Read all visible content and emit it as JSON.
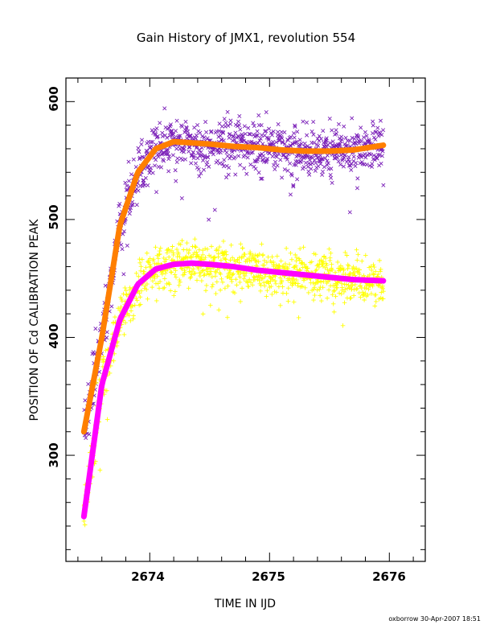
{
  "chart_data": {
    "type": "scatter",
    "title": "Gain History of JMX1, revolution 554",
    "xlabel": "TIME IN IJD",
    "ylabel": "POSITION OF Cd CALIBRATION PEAK",
    "footer": "oxborrow 30-Apr-2007 18:51",
    "xlim": [
      2673.3,
      2676.3
    ],
    "ylim": [
      210,
      620
    ],
    "x_ticks": [
      2674,
      2675,
      2676
    ],
    "y_ticks": [
      300,
      400,
      500,
      600
    ],
    "grid": false,
    "legend": "none",
    "series": [
      {
        "marker": "x",
        "color": "#7a1fb8",
        "x_range": [
          2673.45,
          2675.95
        ],
        "n_points": 1000,
        "scatter_sd": 11,
        "trend": {
          "x": [
            2673.45,
            2673.6,
            2673.75,
            2673.9,
            2674.05,
            2674.2,
            2674.35,
            2674.5,
            2674.7,
            2674.9,
            2675.1,
            2675.3,
            2675.5,
            2675.7,
            2675.95
          ],
          "y": [
            320,
            400,
            495,
            540,
            560,
            566,
            565,
            564,
            562,
            561,
            559,
            558,
            558,
            559,
            563
          ]
        },
        "fit": {
          "color": "#ff7f00"
        }
      },
      {
        "marker": "+",
        "color": "#ffff00",
        "x_range": [
          2673.45,
          2675.95
        ],
        "n_points": 1000,
        "scatter_sd": 10,
        "trend": {
          "x": [
            2673.45,
            2673.6,
            2673.75,
            2673.9,
            2674.05,
            2674.2,
            2674.35,
            2674.5,
            2674.7,
            2674.9,
            2675.1,
            2675.3,
            2675.5,
            2675.7,
            2675.95
          ],
          "y": [
            248,
            360,
            415,
            445,
            458,
            462,
            463,
            462,
            460,
            457,
            455,
            453,
            451,
            449,
            448
          ]
        },
        "fit": {
          "color": "#ff00ff"
        }
      }
    ]
  }
}
